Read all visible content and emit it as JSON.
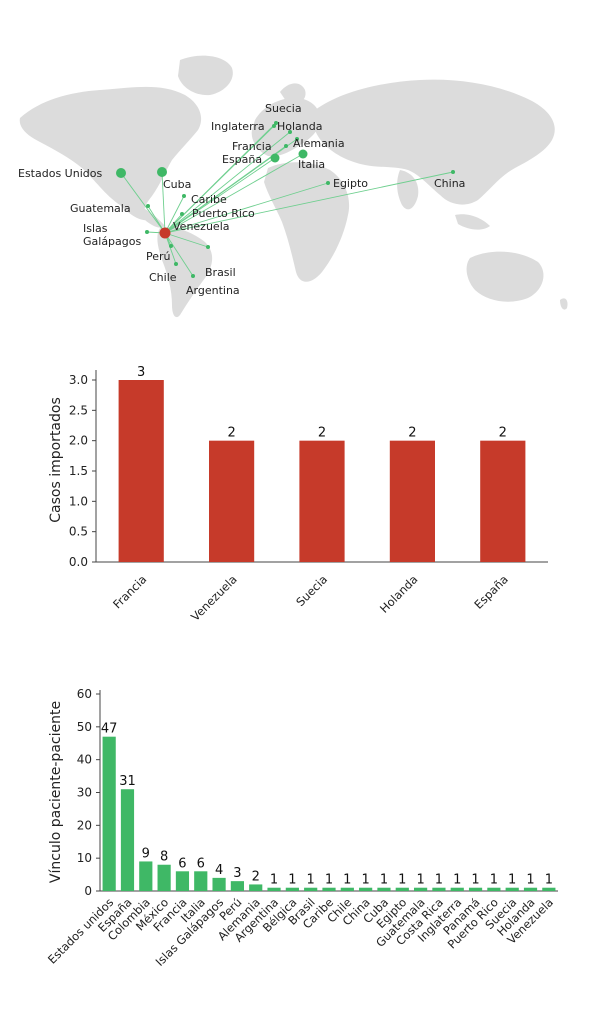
{
  "map": {
    "hub": "Venezuela",
    "places": [
      {
        "name": "Estados Unidos",
        "marker": "large"
      },
      {
        "name": "Cuba",
        "marker": "large"
      },
      {
        "name": "Caribe",
        "marker": "small"
      },
      {
        "name": "Guatemala",
        "marker": "small"
      },
      {
        "name": "Puerto Rico",
        "marker": "small"
      },
      {
        "name": "Islas Galápagos",
        "marker": "small"
      },
      {
        "name": "Perú",
        "marker": "small"
      },
      {
        "name": "Chile",
        "marker": "small"
      },
      {
        "name": "Brasil",
        "marker": "small"
      },
      {
        "name": "Argentina",
        "marker": "small"
      },
      {
        "name": "Suecia",
        "marker": "small"
      },
      {
        "name": "Inglaterra",
        "marker": "small"
      },
      {
        "name": "Holanda",
        "marker": "small"
      },
      {
        "name": "Francia",
        "marker": "small"
      },
      {
        "name": "Alemania",
        "marker": "small"
      },
      {
        "name": "España",
        "marker": "medium"
      },
      {
        "name": "Italia",
        "marker": "medium"
      },
      {
        "name": "Egipto",
        "marker": "small"
      },
      {
        "name": "China",
        "marker": "small"
      },
      {
        "name": "Venezuela",
        "marker": "hub"
      }
    ],
    "colors": {
      "land": "#d9d9d9",
      "marker": "#3fb866",
      "hub": "#c63a2a",
      "line": "#6fcf8f"
    }
  },
  "chart_data": [
    {
      "type": "bar",
      "ylabel": "Casos importados",
      "categories": [
        "Francia",
        "Venezuela",
        "Suecia",
        "Holanda",
        "España"
      ],
      "values": [
        3,
        2,
        2,
        2,
        2
      ],
      "ylim": [
        0,
        3.0
      ],
      "yticks": [
        "0.0",
        "0.5",
        "1.0",
        "1.5",
        "2.0",
        "2.5",
        "3.0"
      ],
      "color": "#c63a2a",
      "grid": false
    },
    {
      "type": "bar",
      "ylabel": "Vínculo paciente-paciente",
      "categories": [
        "Estados unidos",
        "España",
        "Colombia",
        "México",
        "Francia",
        "Italia",
        "Islas Galápagos",
        "Perú",
        "Alemania",
        "Argentina",
        "Bélgica",
        "Brasil",
        "Caribe",
        "Chile",
        "China",
        "Cuba",
        "Egipto",
        "Guatemala",
        "Costa Rica",
        "Inglaterra",
        "Panamá",
        "Puerto Rico",
        "Suecia",
        "Holanda",
        "Venezuela"
      ],
      "values": [
        47,
        31,
        9,
        8,
        6,
        6,
        4,
        3,
        2,
        1,
        1,
        1,
        1,
        1,
        1,
        1,
        1,
        1,
        1,
        1,
        1,
        1,
        1,
        1,
        1
      ],
      "ylim": [
        0,
        60
      ],
      "yticks": [
        "0",
        "10",
        "20",
        "30",
        "40",
        "50",
        "60"
      ],
      "color": "#3fb866",
      "grid": false
    }
  ]
}
